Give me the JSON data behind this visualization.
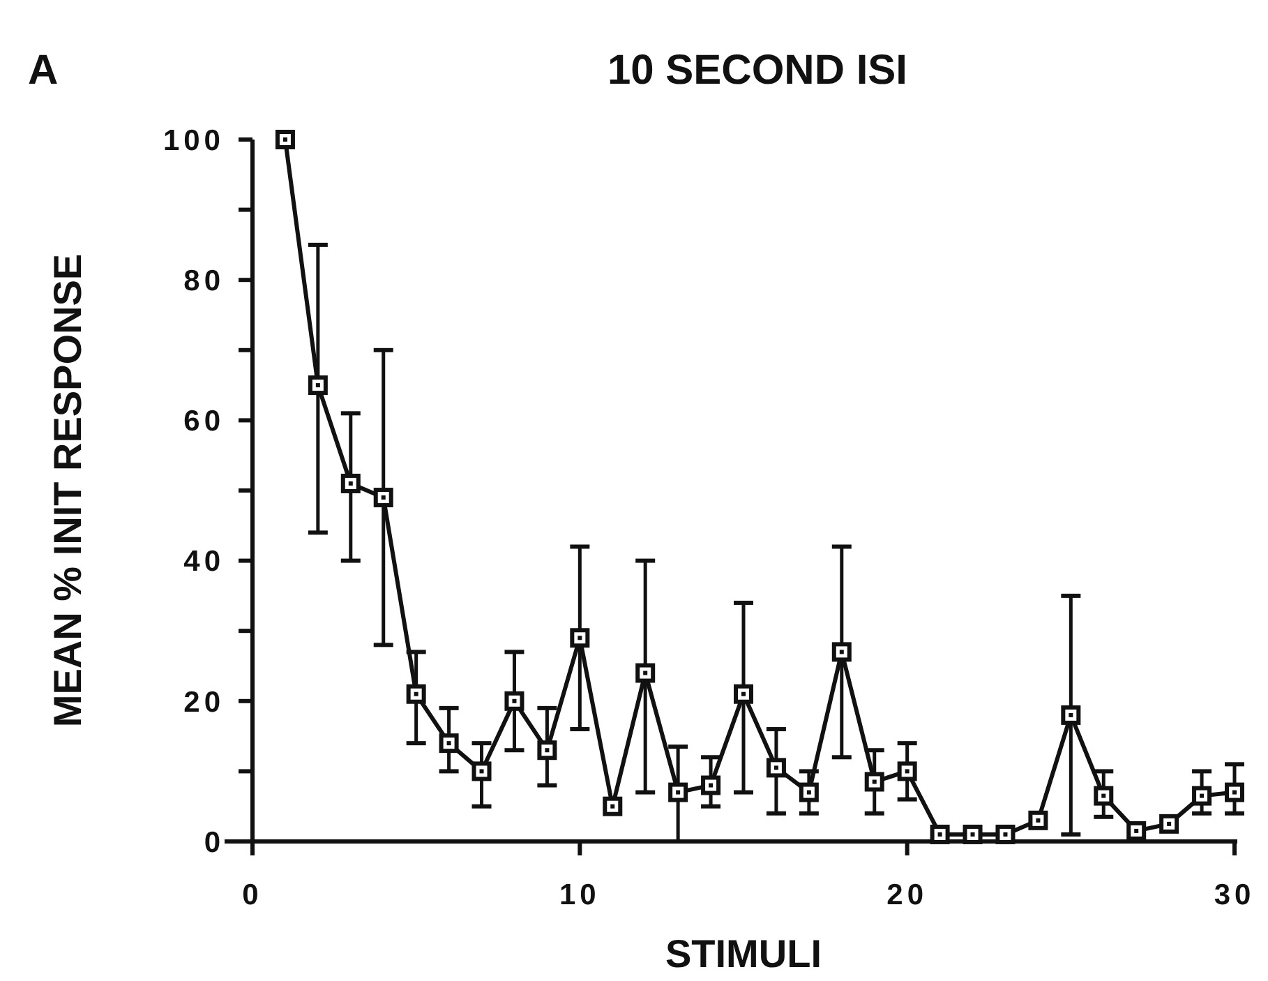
{
  "chart_data": {
    "type": "line",
    "title": "10 SECOND ISI",
    "xlabel": "STIMULI",
    "ylabel": "MEAN % INIT RESPONSE",
    "annotations": [
      "A"
    ],
    "x": [
      1,
      2,
      3,
      4,
      5,
      6,
      7,
      8,
      9,
      10,
      11,
      12,
      13,
      14,
      15,
      16,
      17,
      18,
      19,
      20,
      21,
      22,
      23,
      24,
      25,
      26,
      27,
      28,
      29,
      30
    ],
    "series": [
      {
        "color": "#111111",
        "values": [
          100,
          65,
          51,
          49,
          21,
          14,
          10,
          20,
          13,
          29,
          5,
          24,
          7,
          8,
          21,
          10.5,
          7,
          27,
          8.5,
          10,
          1,
          1,
          1,
          3,
          18,
          6.5,
          1.5,
          2.5,
          6.5,
          7
        ],
        "errors": [
          null,
          [
            44,
            85
          ],
          [
            40,
            61
          ],
          [
            28,
            70
          ],
          [
            14,
            27
          ],
          [
            10,
            19
          ],
          [
            5,
            14
          ],
          [
            13,
            27
          ],
          [
            8,
            19
          ],
          [
            16,
            42
          ],
          null,
          [
            7,
            40
          ],
          [
            0,
            13.5
          ],
          [
            5,
            12
          ],
          [
            7,
            34
          ],
          [
            4,
            16
          ],
          [
            4,
            10
          ],
          [
            12,
            42
          ],
          [
            4,
            13
          ],
          [
            6,
            14
          ],
          null,
          null,
          null,
          null,
          [
            1,
            35
          ],
          [
            3.5,
            10
          ],
          null,
          null,
          [
            4,
            10
          ],
          [
            4,
            11
          ]
        ]
      }
    ],
    "xlim": [
      0,
      30
    ],
    "xticks": [
      0,
      10,
      20,
      30
    ],
    "ylim": [
      0,
      100
    ],
    "yticks": [
      0,
      {
        "value": 10,
        "label": null
      },
      20,
      {
        "value": 30,
        "label": null
      },
      40,
      {
        "value": 50,
        "label": null
      },
      60,
      {
        "value": 70,
        "label": null
      },
      80,
      {
        "value": 90,
        "label": null
      },
      100
    ],
    "marker": "square",
    "line_style": "solid"
  }
}
